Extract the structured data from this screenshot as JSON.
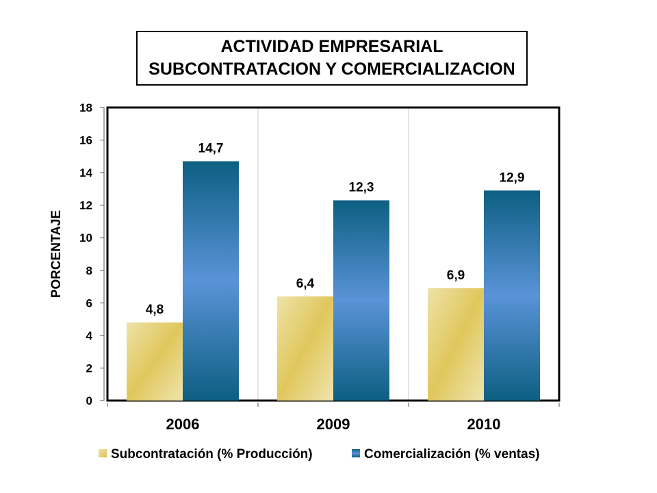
{
  "title": {
    "line1": "ACTIVIDAD EMPRESARIAL",
    "line2": "SUBCONTRATACION Y COMERCIALIZACION"
  },
  "chart_data": {
    "type": "bar",
    "categories": [
      "2006",
      "2009",
      "2010"
    ],
    "series": [
      {
        "name": "Subcontratación (% Producción)",
        "values": [
          4.8,
          6.4,
          6.9
        ],
        "labels": [
          "4,8",
          "6,4",
          "6,9"
        ],
        "color": "#e6cf6e"
      },
      {
        "name": "Comercialización (% ventas)",
        "values": [
          14.7,
          12.3,
          12.9
        ],
        "labels": [
          "14,7",
          "12,3",
          "12,9"
        ],
        "color": "#2f7fb5"
      }
    ],
    "ylabel": "PORCENTAJE",
    "xlabel": "",
    "ylim": [
      0,
      18
    ],
    "yticks": [
      0,
      2,
      4,
      6,
      8,
      10,
      12,
      14,
      16,
      18
    ],
    "grid": "vertical separators between categories",
    "legend": "bottom"
  }
}
